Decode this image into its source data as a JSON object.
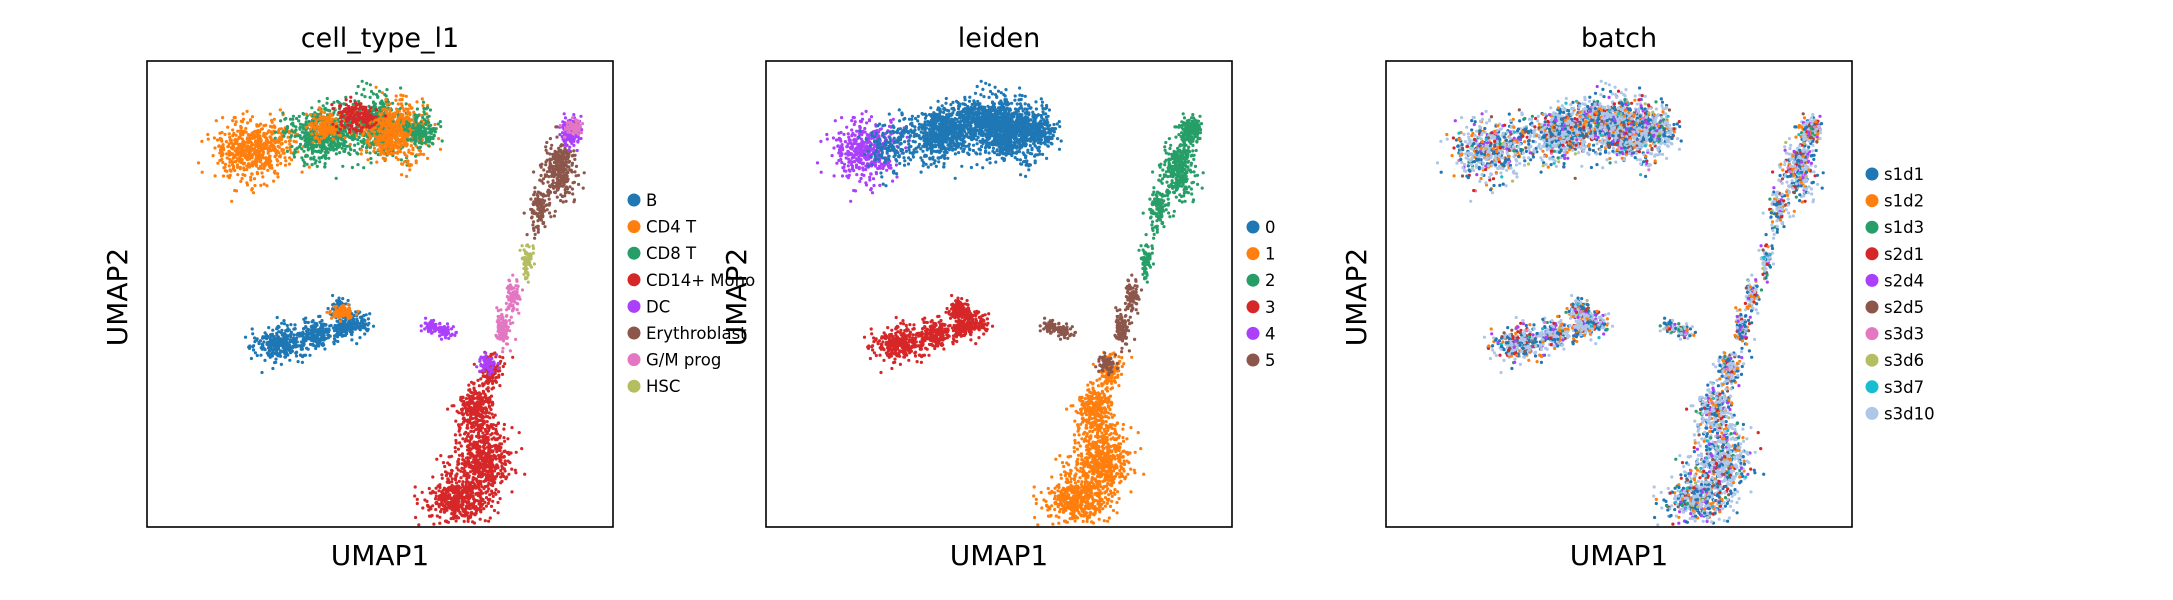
{
  "chart_data": [
    {
      "type": "scatter",
      "title": "cell_type_l1",
      "xlabel": "UMAP1",
      "ylabel": "UMAP2",
      "grid": false,
      "legend": "right",
      "legend_entries": [
        {
          "label": "B",
          "color": "#1f77b4"
        },
        {
          "label": "CD4 T",
          "color": "#ff7f0e"
        },
        {
          "label": "CD8 T",
          "color": "#279e68"
        },
        {
          "label": "CD14+ Mono",
          "color": "#d62728"
        },
        {
          "label": "DC",
          "color": "#aa40fc"
        },
        {
          "label": "Erythroblast",
          "color": "#8c564b"
        },
        {
          "label": "G/M prog",
          "color": "#e377c2"
        },
        {
          "label": "HSC",
          "color": "#b5bd61"
        }
      ]
    },
    {
      "type": "scatter",
      "title": "leiden",
      "xlabel": "UMAP1",
      "ylabel": "UMAP2",
      "grid": false,
      "legend": "right",
      "legend_entries": [
        {
          "label": "0",
          "color": "#1f77b4"
        },
        {
          "label": "1",
          "color": "#ff7f0e"
        },
        {
          "label": "2",
          "color": "#279e68"
        },
        {
          "label": "3",
          "color": "#d62728"
        },
        {
          "label": "4",
          "color": "#aa40fc"
        },
        {
          "label": "5",
          "color": "#8c564b"
        }
      ]
    },
    {
      "type": "scatter",
      "title": "batch",
      "xlabel": "UMAP1",
      "ylabel": "UMAP2",
      "grid": false,
      "legend": "right",
      "legend_entries": [
        {
          "label": "s1d1",
          "color": "#1f77b4"
        },
        {
          "label": "s1d2",
          "color": "#ff7f0e"
        },
        {
          "label": "s1d3",
          "color": "#279e68"
        },
        {
          "label": "s2d1",
          "color": "#d62728"
        },
        {
          "label": "s2d4",
          "color": "#aa40fc"
        },
        {
          "label": "s2d5",
          "color": "#8c564b"
        },
        {
          "label": "s3d3",
          "color": "#e377c2"
        },
        {
          "label": "s3d6",
          "color": "#b5bd61"
        },
        {
          "label": "s3d7",
          "color": "#17becf"
        },
        {
          "label": "s3d10",
          "color": "#aec7e8"
        }
      ]
    }
  ]
}
